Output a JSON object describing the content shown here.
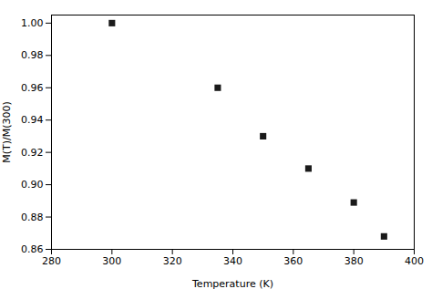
{
  "chart_data": {
    "type": "scatter",
    "x": [
      300,
      335,
      350,
      365,
      380,
      390
    ],
    "y": [
      1.0,
      0.96,
      0.93,
      0.91,
      0.889,
      0.868
    ],
    "xlabel": "Temperature (K)",
    "ylabel": "M(T)/M(300)",
    "xlim": [
      280,
      400
    ],
    "ylim": [
      0.86,
      1.005
    ],
    "xticks": [
      280,
      300,
      320,
      340,
      360,
      380,
      400
    ],
    "yticks": [
      0.86,
      0.88,
      {
        "value": 0.9,
        "label": "0.90"
      },
      0.92,
      0.94,
      0.96,
      0.98,
      {
        "value": 1.0,
        "label": "1.00"
      }
    ],
    "color": "#1a1a1a",
    "marker": "square",
    "grid": false
  }
}
